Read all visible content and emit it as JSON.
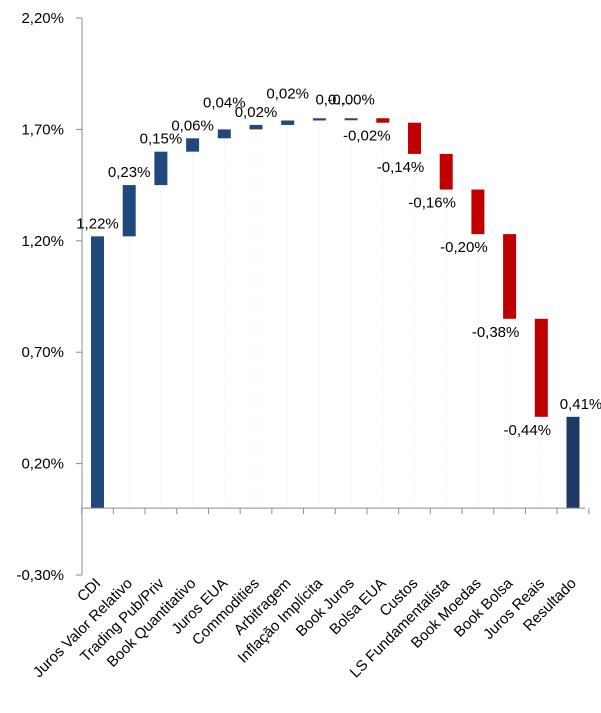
{
  "chart_data": {
    "type": "bar",
    "subtype": "waterfall",
    "title": "",
    "xlabel": "",
    "ylabel": "",
    "ylim": [
      -0.3,
      2.2
    ],
    "y_ticks": [
      "2,20%",
      "1,70%",
      "1,20%",
      "0,70%",
      "0,20%",
      "-0,30%"
    ],
    "y_tick_values": [
      2.2,
      1.7,
      1.2,
      0.7,
      0.2,
      -0.3
    ],
    "grid": false,
    "legend": "none",
    "categories": [
      "CDI",
      "Juros Valor Relativo",
      "Trading Pub/Priv",
      "Book Quantitativo",
      "Juros EUA",
      "Commodities",
      "Arbitragem",
      "Inflação Implícita",
      "Book Juros",
      "Bolsa EUA",
      "Custos",
      "LS Fundamentalista",
      "Book Moedas",
      "Book Bolsa",
      "Juros Reais",
      "Resultado"
    ],
    "values": [
      1.22,
      0.23,
      0.15,
      0.06,
      0.04,
      0.02,
      0.02,
      0.01,
      -0.0,
      -0.02,
      -0.14,
      -0.16,
      -0.2,
      -0.38,
      -0.44,
      0.41
    ],
    "labels": [
      "1,22%",
      "0,23%",
      "0,15%",
      "0,06%",
      "0,04%",
      "0,02%",
      "0,02%",
      "0,0…",
      "-0,00%",
      "-0,02%",
      "-0,14%",
      "-0,16%",
      "-0,20%",
      "-0,38%",
      "-0,44%",
      "0,41%"
    ],
    "kinds": [
      "total",
      "delta",
      "delta",
      "delta",
      "delta",
      "delta",
      "delta",
      "delta",
      "delta",
      "delta",
      "delta",
      "delta",
      "delta",
      "delta",
      "delta",
      "total"
    ],
    "colors": {
      "positive": "#1F497D",
      "negative": "#C00000",
      "total": "#1F3864",
      "axis": "#8C8C8C",
      "connector": "#E6E6E6"
    }
  }
}
